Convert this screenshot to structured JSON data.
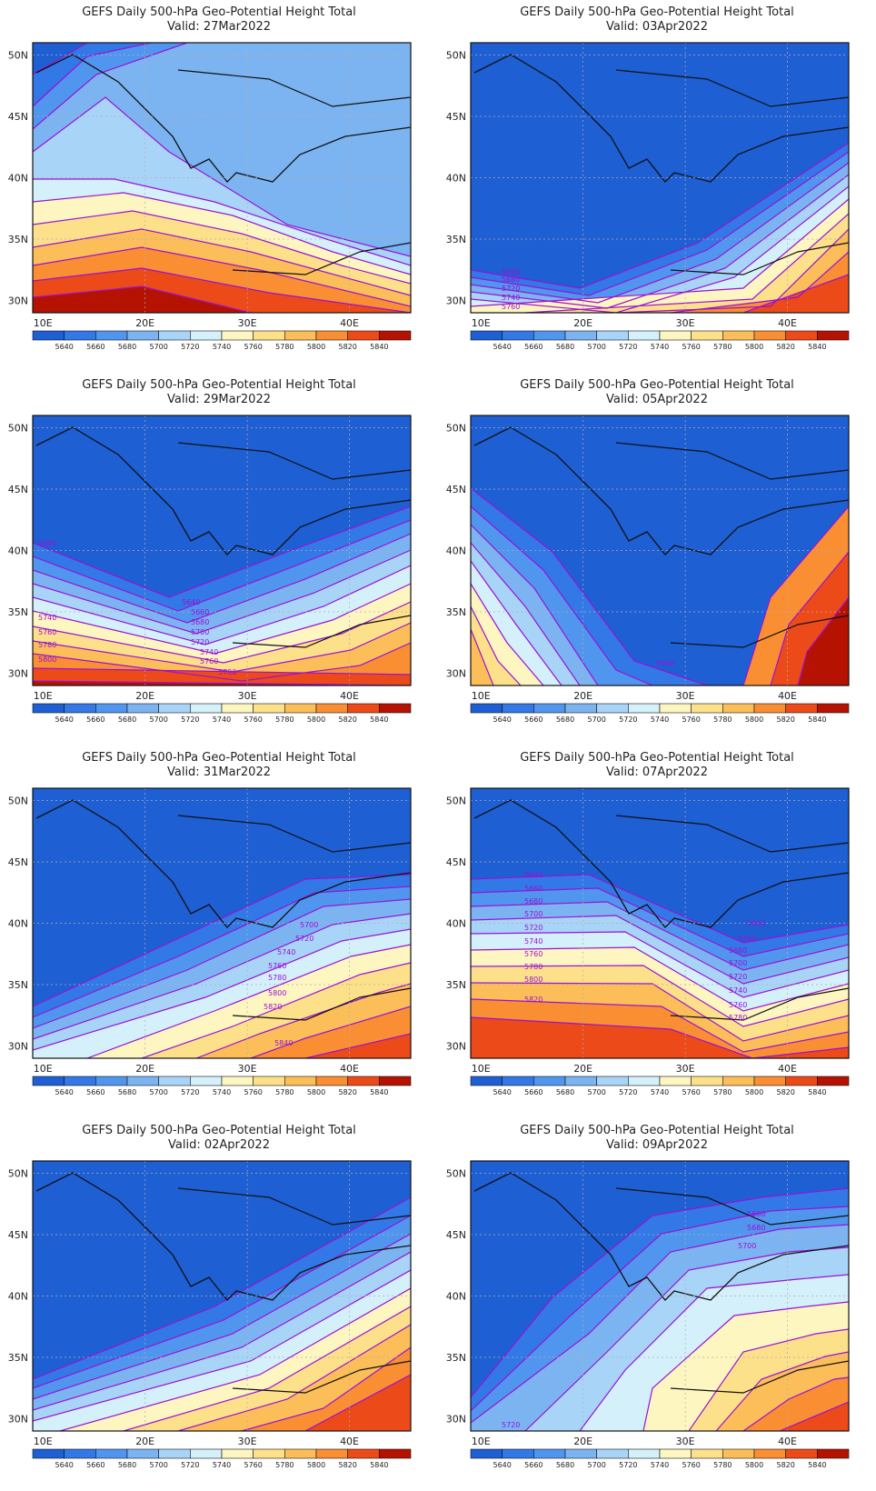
{
  "figure": {
    "panel_title": "GEFS Daily 500-hPa Geo-Potential Height Total",
    "valid_prefix": "Valid:",
    "lat_ticks": [
      "30N",
      "35N",
      "40N",
      "45N",
      "50N"
    ],
    "lon_ticks": [
      "10E",
      "20E",
      "30E",
      "40E"
    ],
    "colorbar_labels": [
      "5640",
      "5660",
      "5680",
      "5700",
      "5720",
      "5740",
      "5760",
      "5780",
      "5800",
      "5820",
      "5840"
    ],
    "colorbar_colors": [
      "#1e5fd4",
      "#3278e6",
      "#5096ee",
      "#7cb4f2",
      "#a8d4f8",
      "#d4f0fb",
      "#fdf6c0",
      "#fde08a",
      "#fcbe58",
      "#f98e33",
      "#ec4a18",
      "#b61202"
    ],
    "contour_color": "#9a12d6",
    "domain": {
      "lon": [
        9,
        46
      ],
      "lat": [
        29,
        51
      ]
    }
  },
  "panels": [
    {
      "valid": "27Mar2022",
      "labels": []
    },
    {
      "valid": "03Apr2022",
      "labels": [
        "5660",
        "5680",
        "5720",
        "5740",
        "5760"
      ]
    },
    {
      "valid": "29Mar2022",
      "labels": [
        "5640",
        "5740",
        "5760",
        "5780",
        "5800",
        "5640",
        "5660",
        "5680",
        "5700",
        "5720",
        "5740",
        "5760",
        "5780"
      ]
    },
    {
      "valid": "05Apr2022",
      "labels": [
        "5660"
      ]
    },
    {
      "valid": "31Mar2022",
      "labels": [
        "5700",
        "5720",
        "5740",
        "5760",
        "5780",
        "5800",
        "5820",
        "5840"
      ]
    },
    {
      "valid": "07Apr2022",
      "labels": [
        "5640",
        "5660",
        "5680",
        "5700",
        "5720",
        "5740",
        "5760",
        "5780",
        "5800",
        "5820",
        "5640",
        "5660",
        "5680",
        "5700",
        "5720",
        "5740",
        "5760",
        "5780"
      ]
    },
    {
      "valid": "02Apr2022",
      "labels": []
    },
    {
      "valid": "09Apr2022",
      "labels": [
        "5660",
        "5680",
        "5700",
        "5720"
      ]
    }
  ]
}
